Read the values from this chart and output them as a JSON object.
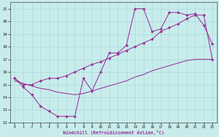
{
  "bg_color": "#c8ecec",
  "grid_color": "#a8d8d8",
  "line_color": "#993399",
  "xlabel": "Windchill (Refroidissement éolien,°C)",
  "hours": [
    0,
    1,
    2,
    3,
    4,
    5,
    6,
    7,
    8,
    9,
    10,
    11,
    12,
    13,
    14,
    15,
    16,
    17,
    18,
    19,
    20,
    21,
    22,
    23
  ],
  "windchill": [
    15.5,
    14.8,
    14.2,
    13.3,
    12.9,
    12.5,
    12.5,
    12.5,
    15.5,
    14.5,
    16.0,
    17.5,
    17.5,
    18.1,
    21.0,
    21.0,
    19.2,
    19.4,
    20.7,
    20.7,
    20.5,
    20.6,
    19.7,
    18.2
  ],
  "temperature": [
    15.5,
    15.0,
    15.0,
    15.3,
    15.5,
    15.5,
    15.7,
    16.0,
    16.3,
    16.6,
    16.8,
    17.1,
    17.4,
    17.7,
    18.0,
    18.3,
    18.6,
    19.2,
    19.5,
    19.8,
    20.2,
    20.5,
    20.5,
    17.0
  ],
  "trend": [
    15.3,
    15.1,
    14.9,
    14.7,
    14.6,
    14.4,
    14.3,
    14.2,
    14.3,
    14.5,
    14.7,
    14.9,
    15.1,
    15.3,
    15.6,
    15.8,
    16.1,
    16.3,
    16.5,
    16.7,
    16.9,
    17.0,
    17.0,
    17.0
  ],
  "xmin": -0.5,
  "xmax": 23.5,
  "ymin": 12,
  "ymax": 21.5,
  "yticks": [
    12,
    13,
    14,
    15,
    16,
    17,
    18,
    19,
    20,
    21
  ],
  "xticks": [
    0,
    1,
    2,
    3,
    4,
    5,
    6,
    7,
    8,
    9,
    10,
    11,
    12,
    13,
    14,
    15,
    16,
    17,
    18,
    19,
    20,
    21,
    22,
    23
  ]
}
